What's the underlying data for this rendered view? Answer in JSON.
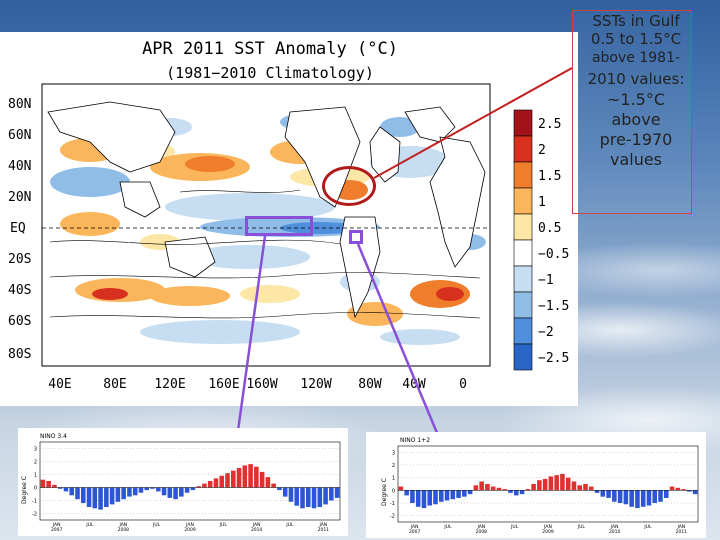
{
  "map": {
    "title": "APR 2011 SST Anomaly (°C)",
    "subtitle": "(1981−2010 Climatology)",
    "lat_labels": [
      "80N",
      "60N",
      "40N",
      "20N",
      "EQ",
      "20S",
      "40S",
      "60S",
      "80S"
    ],
    "lon_labels": [
      "40E",
      "80E",
      "120E",
      "160E",
      "160W",
      "120W",
      "80W",
      "40W",
      "0"
    ],
    "legend": [
      "2.5",
      "2",
      "1.5",
      "1",
      "0.5",
      "−0.5",
      "−1",
      "−1.5",
      "−2",
      "−2.5"
    ],
    "legend_colors": [
      "#a3121b",
      "#d7301f",
      "#f07d2c",
      "#fbb55a",
      "#fde7a6",
      "#ffffff",
      "#c6ddf2",
      "#8fbde8",
      "#4f8fdb",
      "#2a66c8"
    ]
  },
  "annotation": {
    "line1": "SSTs in Gulf",
    "line2": "0.5 to 1.5°C",
    "line3": "above 1981-",
    "line4": "2010 values:",
    "line5": "~1.5°C above",
    "line6": "pre-1970",
    "line7": "values"
  },
  "nino34": {
    "title": "NINO 3.4",
    "ylabel": "Degree C",
    "yticks": [
      "3",
      "2",
      "1",
      "0",
      "-1",
      "-2"
    ],
    "xlabels": [
      "JAN\n2007",
      "JUL",
      "JAN\n2008",
      "JUL",
      "JAN\n2009",
      "JUL",
      "JAN\n2010",
      "JUL",
      "JAN\n2011"
    ],
    "values": [
      0.6,
      0.5,
      0.2,
      -0.1,
      -0.3,
      -0.6,
      -0.9,
      -1.2,
      -1.5,
      -1.6,
      -1.7,
      -1.5,
      -1.3,
      -1.1,
      -0.9,
      -0.7,
      -0.6,
      -0.4,
      -0.2,
      -0.1,
      -0.3,
      -0.6,
      -0.8,
      -0.9,
      -0.7,
      -0.4,
      -0.2,
      0.1,
      0.3,
      0.5,
      0.7,
      0.9,
      1.1,
      1.3,
      1.5,
      1.7,
      1.8,
      1.6,
      1.2,
      0.8,
      0.3,
      -0.2,
      -0.7,
      -1.1,
      -1.4,
      -1.6,
      -1.5,
      -1.6,
      -1.5,
      -1.3,
      -1.0,
      -0.8
    ]
  },
  "nino12": {
    "title": "NINO 1+2",
    "ylabel": "Degree C",
    "yticks": [
      "3",
      "2",
      "1",
      "0",
      "-1",
      "-2"
    ],
    "xlabels": [
      "JAN\n2007",
      "JUL",
      "JAN\n2008",
      "JUL",
      "JAN\n2009",
      "JUL",
      "JAN\n2010",
      "JUL",
      "JAN\n2011"
    ],
    "values": [
      0.3,
      -0.4,
      -1.0,
      -1.3,
      -1.4,
      -1.2,
      -1.1,
      -0.9,
      -0.8,
      -0.7,
      -0.6,
      -0.5,
      -0.3,
      0.4,
      0.7,
      0.5,
      0.3,
      0.2,
      0.1,
      -0.2,
      -0.4,
      -0.3,
      0.1,
      0.5,
      0.8,
      0.9,
      1.1,
      1.2,
      1.3,
      1.0,
      0.7,
      0.4,
      0.5,
      0.3,
      -0.2,
      -0.5,
      -0.6,
      -0.9,
      -1.0,
      -1.1,
      -1.3,
      -1.4,
      -1.3,
      -1.2,
      -1.0,
      -0.9,
      -0.6,
      0.3,
      0.2,
      0.1,
      -0.1,
      -0.3
    ]
  }
}
